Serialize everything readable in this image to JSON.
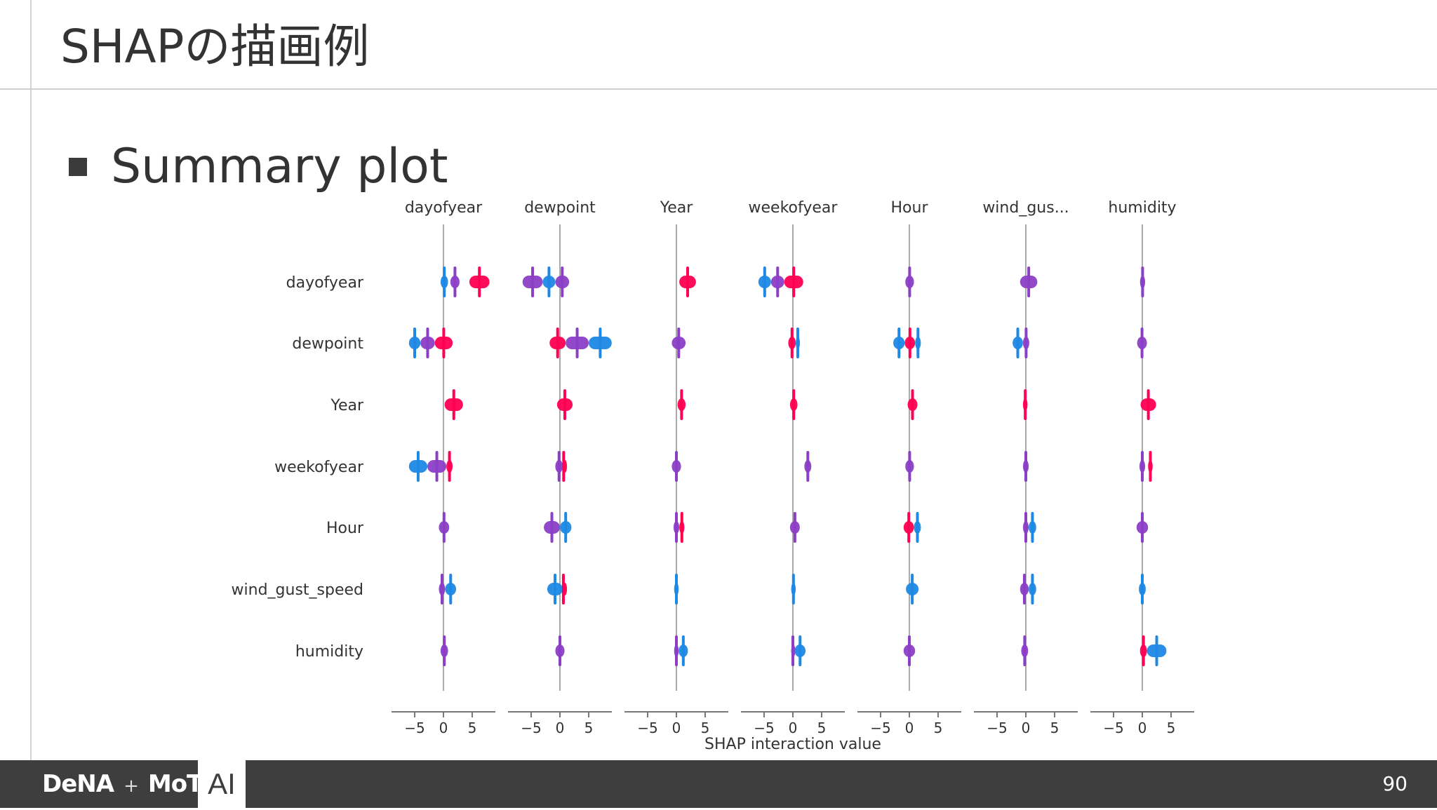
{
  "slide": {
    "title": "SHAPの描画例",
    "bullet": "Summary plot",
    "page_number": "90"
  },
  "footer": {
    "logo_dena": "DeNA",
    "logo_plus": "+",
    "logo_mot": "MoT",
    "logo_ai": "AI"
  },
  "colors": {
    "low_feature_value": "#1e88e5",
    "high_feature_value": "#ff0052",
    "mid_feature_value": "#8b3fc6",
    "axis": "#777777"
  },
  "chart_data": {
    "type": "scatter",
    "subtype": "shap-interaction-summary-beeswarm-matrix",
    "columns": [
      "dayofyear",
      "dewpoint",
      "Year",
      "weekofyear",
      "Hour",
      "wind_gus...",
      "humidity"
    ],
    "rows": [
      "dayofyear",
      "dewpoint",
      "Year",
      "weekofyear",
      "Hour",
      "wind_gust_speed",
      "humidity"
    ],
    "x_ticks": [
      "−5",
      "0",
      "5"
    ],
    "x_ticks_values": [
      -5,
      0,
      5
    ],
    "xlabel": "SHAP interaction value",
    "xlim": [
      -9,
      9
    ],
    "cells": [
      [
        {
          "segments": [
            [
              -0.5,
              0.8,
              "#1e88e5"
            ],
            [
              1.2,
              2.8,
              "#8b3fc6"
            ],
            [
              4.5,
              8.0,
              "#ff0052"
            ]
          ]
        },
        {
          "segments": [
            [
              -6.5,
              -3.0,
              "#8b3fc6"
            ],
            [
              -3.0,
              -0.8,
              "#1e88e5"
            ],
            [
              -0.8,
              1.6,
              "#8b3fc6"
            ]
          ]
        },
        {
          "segments": [
            [
              0.5,
              3.4,
              "#ff0052"
            ]
          ]
        },
        {
          "segments": [
            [
              -6.0,
              -3.8,
              "#1e88e5"
            ],
            [
              -3.8,
              -1.5,
              "#8b3fc6"
            ],
            [
              -1.5,
              1.8,
              "#ff0052"
            ]
          ]
        },
        {
          "segments": [
            [
              -0.7,
              0.8,
              "#8b3fc6"
            ]
          ]
        },
        {
          "segments": [
            [
              -1.0,
              2.0,
              "#8b3fc6"
            ]
          ]
        },
        {
          "segments": [
            [
              -0.4,
              0.5,
              "#8b3fc6"
            ]
          ]
        }
      ],
      [
        {
          "segments": [
            [
              -6.0,
              -4.0,
              "#1e88e5"
            ],
            [
              -4.0,
              -1.5,
              "#8b3fc6"
            ],
            [
              -1.5,
              1.6,
              "#ff0052"
            ]
          ]
        },
        {
          "segments": [
            [
              -1.8,
              1.0,
              "#ff0052"
            ],
            [
              1.0,
              5.0,
              "#8b3fc6"
            ],
            [
              5.0,
              9.0,
              "#1e88e5"
            ]
          ]
        },
        {
          "segments": [
            [
              -0.8,
              1.6,
              "#8b3fc6"
            ]
          ]
        },
        {
          "segments": [
            [
              -0.8,
              0.5,
              "#ff0052"
            ],
            [
              0.5,
              1.2,
              "#1e88e5"
            ]
          ]
        },
        {
          "segments": [
            [
              -2.8,
              -0.8,
              "#1e88e5"
            ],
            [
              -0.8,
              1.0,
              "#ff0052"
            ],
            [
              1.0,
              2.0,
              "#1e88e5"
            ]
          ]
        },
        {
          "segments": [
            [
              -2.3,
              -0.5,
              "#1e88e5"
            ],
            [
              -0.5,
              0.6,
              "#8b3fc6"
            ]
          ]
        },
        {
          "segments": [
            [
              -0.9,
              0.8,
              "#8b3fc6"
            ]
          ]
        }
      ],
      [
        {
          "segments": [
            [
              0.2,
              3.4,
              "#ff0052"
            ]
          ]
        },
        {
          "segments": [
            [
              -0.5,
              2.2,
              "#ff0052"
            ]
          ]
        },
        {
          "segments": [
            [
              0.2,
              1.6,
              "#ff0052"
            ]
          ]
        },
        {
          "segments": [
            [
              -0.5,
              0.8,
              "#ff0052"
            ]
          ]
        },
        {
          "segments": [
            [
              -0.3,
              1.4,
              "#ff0052"
            ]
          ]
        },
        {
          "segments": [
            [
              -0.5,
              0.3,
              "#ff0052"
            ]
          ]
        },
        {
          "segments": [
            [
              -0.3,
              2.4,
              "#ff0052"
            ]
          ]
        }
      ],
      [
        {
          "segments": [
            [
              -6.0,
              -2.8,
              "#1e88e5"
            ],
            [
              -2.8,
              0.5,
              "#8b3fc6"
            ],
            [
              0.5,
              1.6,
              "#ff0052"
            ]
          ]
        },
        {
          "segments": [
            [
              -0.8,
              0.5,
              "#8b3fc6"
            ],
            [
              0.5,
              0.8,
              "#ff0052"
            ]
          ]
        },
        {
          "segments": [
            [
              -0.8,
              0.8,
              "#8b3fc6"
            ]
          ]
        },
        {
          "segments": [
            [
              2.0,
              3.2,
              "#8b3fc6"
            ]
          ]
        },
        {
          "segments": [
            [
              -0.7,
              0.8,
              "#8b3fc6"
            ]
          ]
        },
        {
          "segments": [
            [
              -0.5,
              0.5,
              "#8b3fc6"
            ]
          ]
        },
        {
          "segments": [
            [
              -0.5,
              0.5,
              "#8b3fc6"
            ],
            [
              1.0,
              1.8,
              "#ff0052"
            ]
          ]
        }
      ],
      [
        {
          "segments": [
            [
              -0.8,
              1.0,
              "#8b3fc6"
            ]
          ]
        },
        {
          "segments": [
            [
              -2.8,
              0.0,
              "#8b3fc6"
            ],
            [
              0.0,
              2.0,
              "#1e88e5"
            ]
          ]
        },
        {
          "segments": [
            [
              -0.5,
              0.5,
              "#8b3fc6"
            ],
            [
              0.5,
              1.4,
              "#ff0052"
            ]
          ]
        },
        {
          "segments": [
            [
              -0.5,
              1.2,
              "#8b3fc6"
            ]
          ]
        },
        {
          "segments": [
            [
              -1.0,
              0.8,
              "#ff0052"
            ],
            [
              0.8,
              2.0,
              "#1e88e5"
            ]
          ]
        },
        {
          "segments": [
            [
              -0.5,
              0.5,
              "#8b3fc6"
            ],
            [
              0.5,
              1.8,
              "#1e88e5"
            ]
          ]
        },
        {
          "segments": [
            [
              -1.0,
              1.0,
              "#8b3fc6"
            ]
          ]
        }
      ],
      [
        {
          "segments": [
            [
              -0.8,
              0.3,
              "#8b3fc6"
            ],
            [
              0.3,
              2.2,
              "#1e88e5"
            ]
          ]
        },
        {
          "segments": [
            [
              -2.2,
              0.5,
              "#1e88e5"
            ],
            [
              0.5,
              0.7,
              "#ff0052"
            ]
          ]
        },
        {
          "segments": [
            [
              -0.4,
              0.4,
              "#1e88e5"
            ]
          ]
        },
        {
          "segments": [
            [
              -0.3,
              0.5,
              "#1e88e5"
            ]
          ]
        },
        {
          "segments": [
            [
              -0.6,
              1.6,
              "#1e88e5"
            ]
          ]
        },
        {
          "segments": [
            [
              -1.0,
              0.5,
              "#8b3fc6"
            ],
            [
              0.5,
              1.8,
              "#1e88e5"
            ]
          ]
        },
        {
          "segments": [
            [
              -0.6,
              0.6,
              "#1e88e5"
            ]
          ]
        }
      ],
      [
        {
          "segments": [
            [
              -0.5,
              0.8,
              "#8b3fc6"
            ]
          ]
        },
        {
          "segments": [
            [
              -0.8,
              0.8,
              "#8b3fc6"
            ]
          ]
        },
        {
          "segments": [
            [
              -0.4,
              0.4,
              "#8b3fc6"
            ],
            [
              0.4,
              2.0,
              "#1e88e5"
            ]
          ]
        },
        {
          "segments": [
            [
              -0.3,
              0.3,
              "#8b3fc6"
            ],
            [
              0.3,
              2.2,
              "#1e88e5"
            ]
          ]
        },
        {
          "segments": [
            [
              -1.0,
              1.0,
              "#8b3fc6"
            ]
          ]
        },
        {
          "segments": [
            [
              -0.8,
              0.4,
              "#8b3fc6"
            ]
          ]
        },
        {
          "segments": [
            [
              -0.4,
              0.8,
              "#ff0052"
            ],
            [
              0.8,
              4.2,
              "#1e88e5"
            ]
          ]
        }
      ]
    ]
  }
}
